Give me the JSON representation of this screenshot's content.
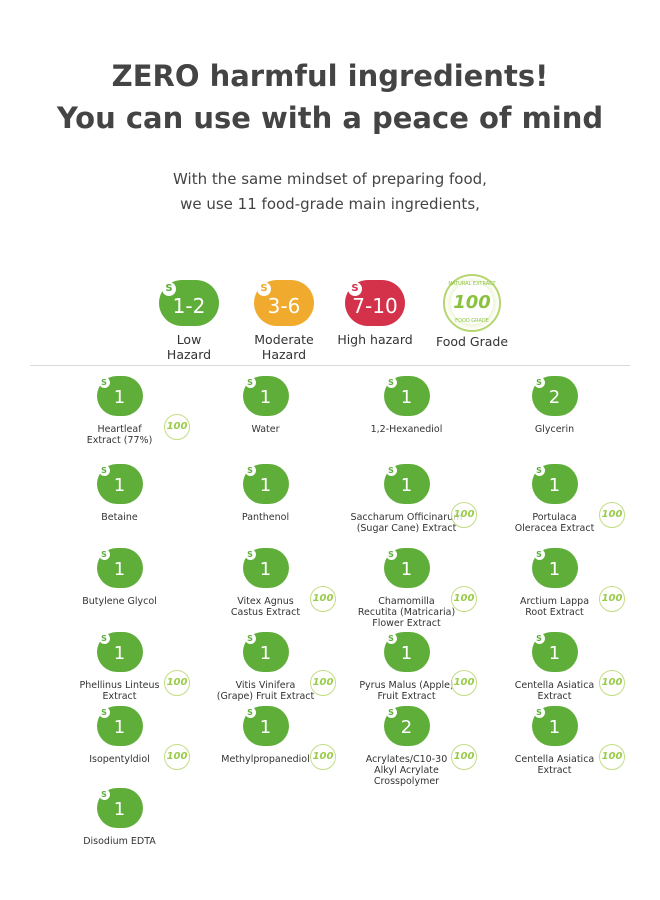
{
  "headline": {
    "line1": "ZERO harmful ingredients!",
    "line2": "You can use with a peace of mind"
  },
  "subline": {
    "line1": "With the same mindset of preparing food,",
    "line2": "we use 11 food-grade main ingredients,"
  },
  "colors": {
    "low": "#5fae3a",
    "moderate": "#f0ab2e",
    "high": "#d4324a",
    "seal": "#8ac23f"
  },
  "legend": [
    {
      "badge": "1-2",
      "label1": "Low",
      "label2": "Hazard",
      "level": "low"
    },
    {
      "badge": "3-6",
      "label1": "Moderate",
      "label2": "Hazard",
      "level": "moderate"
    },
    {
      "badge": "7-10",
      "label1": "High hazard",
      "label2": "",
      "level": "high"
    },
    {
      "badge": "100",
      "label1": "Food Grade",
      "label2": "",
      "level": "seal",
      "seal_top": "NATURAL EXTRACT",
      "seal_bottom": "FOOD GRADE"
    }
  ],
  "s_letter": "S",
  "ingredients": [
    {
      "score": "1",
      "name1": "Heartleaf",
      "name2": "Extract (77%)",
      "name3": "",
      "food_grade": true
    },
    {
      "score": "1",
      "name1": "Water",
      "name2": "",
      "name3": "",
      "food_grade": false
    },
    {
      "score": "1",
      "name1": "1,2-Hexanediol",
      "name2": "",
      "name3": "",
      "food_grade": false
    },
    {
      "score": "2",
      "name1": "Glycerin",
      "name2": "",
      "name3": "",
      "food_grade": false
    },
    {
      "score": "1",
      "name1": "Betaine",
      "name2": "",
      "name3": "",
      "food_grade": false
    },
    {
      "score": "1",
      "name1": "Panthenol",
      "name2": "",
      "name3": "",
      "food_grade": false
    },
    {
      "score": "1",
      "name1": "Saccharum Officinarum",
      "name2": "(Sugar Cane) Extract",
      "name3": "",
      "food_grade": true
    },
    {
      "score": "1",
      "name1": "Portulaca",
      "name2": "Oleracea Extract",
      "name3": "",
      "food_grade": true
    },
    {
      "score": "1",
      "name1": "Butylene Glycol",
      "name2": "",
      "name3": "",
      "food_grade": false
    },
    {
      "score": "1",
      "name1": "Vitex Agnus",
      "name2": "Castus Extract",
      "name3": "",
      "food_grade": true
    },
    {
      "score": "1",
      "name1": "Chamomilla",
      "name2": "Recutita (Matricaria)",
      "name3": "Flower Extract",
      "food_grade": true
    },
    {
      "score": "1",
      "name1": "Arctium Lappa",
      "name2": "Root Extract",
      "name3": "",
      "food_grade": true
    },
    {
      "score": "1",
      "name1": "Phellinus Linteus",
      "name2": "Extract",
      "name3": "",
      "food_grade": true
    },
    {
      "score": "1",
      "name1": "Vitis Vinifera",
      "name2": "(Grape) Fruit Extract",
      "name3": "",
      "food_grade": true
    },
    {
      "score": "1",
      "name1": "Pyrus Malus (Apple)",
      "name2": "Fruit Extract",
      "name3": "",
      "food_grade": true
    },
    {
      "score": "1",
      "name1": "Centella Asiatica",
      "name2": "Extract",
      "name3": "",
      "food_grade": true
    },
    {
      "score": "1",
      "name1": "Isopentyldiol",
      "name2": "",
      "name3": "",
      "food_grade": true
    },
    {
      "score": "1",
      "name1": "Methylpropanediol",
      "name2": "",
      "name3": "",
      "food_grade": true
    },
    {
      "score": "2",
      "name1": "Acrylates/C10-30",
      "name2": "Alkyl Acrylate",
      "name3": "Crosspolymer",
      "food_grade": true
    },
    {
      "score": "1",
      "name1": "Centella Asiatica",
      "name2": "Extract",
      "name3": "",
      "food_grade": true
    },
    {
      "score": "1",
      "name1": "Disodium EDTA",
      "name2": "",
      "name3": "",
      "food_grade": false
    }
  ],
  "mini_seal_text": "100"
}
